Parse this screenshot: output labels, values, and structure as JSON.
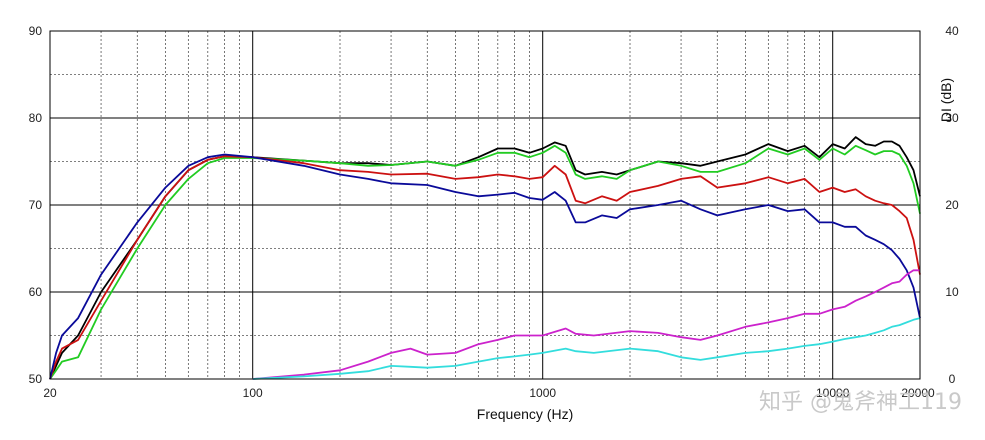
{
  "chart_data": {
    "type": "line",
    "xlabel": "Frequency (Hz)",
    "ylabel_right": "DI (dB)",
    "x_scale": "log",
    "xlim": [
      20,
      20000
    ],
    "ylim_left": [
      50,
      90
    ],
    "ylim_right": [
      0,
      40
    ],
    "grid": true,
    "x_tick_labels": [
      {
        "value": 20,
        "label": "20"
      },
      {
        "value": 100,
        "label": "100"
      },
      {
        "value": 1000,
        "label": "1000"
      },
      {
        "value": 10000,
        "label": "10000"
      },
      {
        "value": 20000,
        "label": "20000"
      }
    ],
    "y_left_ticks": [
      50,
      60,
      70,
      80,
      90
    ],
    "y_right_ticks": [
      0,
      10,
      20,
      30,
      40
    ],
    "series": [
      {
        "axis": "left",
        "color": "#000000",
        "points": [
          [
            20,
            50
          ],
          [
            21,
            51.5
          ],
          [
            22,
            53
          ],
          [
            25,
            55
          ],
          [
            30,
            60
          ],
          [
            40,
            66
          ],
          [
            50,
            71
          ],
          [
            60,
            74
          ],
          [
            70,
            75.2
          ],
          [
            80,
            75.6
          ],
          [
            100,
            75.5
          ],
          [
            150,
            75.1
          ],
          [
            200,
            74.8
          ],
          [
            250,
            74.8
          ],
          [
            300,
            74.6
          ],
          [
            400,
            75
          ],
          [
            500,
            74.5
          ],
          [
            600,
            75.5
          ],
          [
            700,
            76.5
          ],
          [
            800,
            76.5
          ],
          [
            900,
            76
          ],
          [
            1000,
            76.5
          ],
          [
            1100,
            77.2
          ],
          [
            1200,
            76.8
          ],
          [
            1300,
            74
          ],
          [
            1400,
            73.5
          ],
          [
            1600,
            73.8
          ],
          [
            1800,
            73.5
          ],
          [
            2000,
            74
          ],
          [
            2500,
            75
          ],
          [
            3000,
            74.8
          ],
          [
            3500,
            74.5
          ],
          [
            4000,
            75
          ],
          [
            5000,
            75.8
          ],
          [
            6000,
            77
          ],
          [
            7000,
            76.2
          ],
          [
            8000,
            76.8
          ],
          [
            9000,
            75.5
          ],
          [
            10000,
            77
          ],
          [
            11000,
            76.5
          ],
          [
            12000,
            77.8
          ],
          [
            13000,
            77
          ],
          [
            14000,
            76.8
          ],
          [
            15000,
            77.3
          ],
          [
            16000,
            77.3
          ],
          [
            17000,
            76.8
          ],
          [
            18000,
            75.5
          ],
          [
            19000,
            74
          ],
          [
            20000,
            71
          ]
        ]
      },
      {
        "axis": "left",
        "color": "#22cc22",
        "points": [
          [
            20,
            50
          ],
          [
            21,
            51
          ],
          [
            22,
            52
          ],
          [
            25,
            52.5
          ],
          [
            30,
            58
          ],
          [
            40,
            65
          ],
          [
            50,
            70
          ],
          [
            60,
            73
          ],
          [
            70,
            74.8
          ],
          [
            80,
            75.4
          ],
          [
            100,
            75.4
          ],
          [
            150,
            75.1
          ],
          [
            200,
            74.8
          ],
          [
            250,
            74.5
          ],
          [
            300,
            74.6
          ],
          [
            400,
            75
          ],
          [
            500,
            74.5
          ],
          [
            600,
            75.2
          ],
          [
            700,
            76
          ],
          [
            800,
            76
          ],
          [
            900,
            75.5
          ],
          [
            1000,
            76
          ],
          [
            1100,
            76.8
          ],
          [
            1200,
            76
          ],
          [
            1300,
            73.5
          ],
          [
            1400,
            73
          ],
          [
            1600,
            73.3
          ],
          [
            1800,
            73
          ],
          [
            2000,
            74
          ],
          [
            2500,
            75
          ],
          [
            3000,
            74.5
          ],
          [
            3500,
            73.8
          ],
          [
            4000,
            73.8
          ],
          [
            5000,
            74.8
          ],
          [
            6000,
            76.5
          ],
          [
            7000,
            75.8
          ],
          [
            8000,
            76.5
          ],
          [
            9000,
            75.2
          ],
          [
            10000,
            76.5
          ],
          [
            11000,
            75.8
          ],
          [
            12000,
            76.8
          ],
          [
            13000,
            76.3
          ],
          [
            14000,
            75.8
          ],
          [
            15000,
            76.2
          ],
          [
            16000,
            76.2
          ],
          [
            17000,
            75.8
          ],
          [
            18000,
            74.5
          ],
          [
            19000,
            72.5
          ],
          [
            20000,
            69
          ]
        ]
      },
      {
        "axis": "left",
        "color": "#cc1111",
        "points": [
          [
            20,
            50
          ],
          [
            21,
            52
          ],
          [
            22,
            53.5
          ],
          [
            25,
            54.5
          ],
          [
            30,
            59
          ],
          [
            40,
            66
          ],
          [
            50,
            71
          ],
          [
            60,
            74
          ],
          [
            70,
            75.2
          ],
          [
            80,
            75.6
          ],
          [
            100,
            75.5
          ],
          [
            150,
            74.8
          ],
          [
            200,
            74
          ],
          [
            250,
            73.8
          ],
          [
            300,
            73.5
          ],
          [
            400,
            73.6
          ],
          [
            500,
            73
          ],
          [
            600,
            73.2
          ],
          [
            700,
            73.5
          ],
          [
            800,
            73.3
          ],
          [
            900,
            73
          ],
          [
            1000,
            73.2
          ],
          [
            1100,
            74.5
          ],
          [
            1200,
            73.5
          ],
          [
            1300,
            70.5
          ],
          [
            1400,
            70.2
          ],
          [
            1600,
            71
          ],
          [
            1800,
            70.5
          ],
          [
            2000,
            71.5
          ],
          [
            2500,
            72.2
          ],
          [
            3000,
            73
          ],
          [
            3500,
            73.3
          ],
          [
            4000,
            72
          ],
          [
            5000,
            72.5
          ],
          [
            6000,
            73.2
          ],
          [
            7000,
            72.5
          ],
          [
            8000,
            73
          ],
          [
            9000,
            71.5
          ],
          [
            10000,
            72
          ],
          [
            11000,
            71.5
          ],
          [
            12000,
            71.8
          ],
          [
            13000,
            71
          ],
          [
            14000,
            70.5
          ],
          [
            15000,
            70.2
          ],
          [
            16000,
            70
          ],
          [
            17000,
            69.3
          ],
          [
            18000,
            68.5
          ],
          [
            19000,
            66
          ],
          [
            20000,
            62
          ]
        ]
      },
      {
        "axis": "left",
        "color": "#0a0a99",
        "points": [
          [
            20,
            50
          ],
          [
            21,
            53
          ],
          [
            22,
            55
          ],
          [
            25,
            57
          ],
          [
            30,
            62
          ],
          [
            40,
            68
          ],
          [
            50,
            72
          ],
          [
            60,
            74.5
          ],
          [
            70,
            75.5
          ],
          [
            80,
            75.8
          ],
          [
            100,
            75.5
          ],
          [
            150,
            74.5
          ],
          [
            200,
            73.5
          ],
          [
            250,
            73
          ],
          [
            300,
            72.5
          ],
          [
            400,
            72.3
          ],
          [
            500,
            71.5
          ],
          [
            600,
            71
          ],
          [
            700,
            71.2
          ],
          [
            800,
            71.4
          ],
          [
            900,
            70.8
          ],
          [
            1000,
            70.6
          ],
          [
            1100,
            71.5
          ],
          [
            1200,
            70.5
          ],
          [
            1300,
            68
          ],
          [
            1400,
            68
          ],
          [
            1600,
            68.8
          ],
          [
            1800,
            68.5
          ],
          [
            2000,
            69.5
          ],
          [
            2500,
            70
          ],
          [
            3000,
            70.5
          ],
          [
            3500,
            69.5
          ],
          [
            4000,
            68.8
          ],
          [
            5000,
            69.5
          ],
          [
            6000,
            70
          ],
          [
            7000,
            69.3
          ],
          [
            8000,
            69.5
          ],
          [
            9000,
            68
          ],
          [
            10000,
            68
          ],
          [
            11000,
            67.5
          ],
          [
            12000,
            67.5
          ],
          [
            13000,
            66.5
          ],
          [
            14000,
            66
          ],
          [
            15000,
            65.5
          ],
          [
            16000,
            64.8
          ],
          [
            17000,
            63.8
          ],
          [
            18000,
            62.5
          ],
          [
            19000,
            60.5
          ],
          [
            20000,
            57
          ]
        ]
      },
      {
        "axis": "right",
        "color": "#cc22cc",
        "points": [
          [
            100,
            0
          ],
          [
            150,
            0.5
          ],
          [
            200,
            1
          ],
          [
            250,
            2
          ],
          [
            300,
            3
          ],
          [
            350,
            3.5
          ],
          [
            400,
            2.8
          ],
          [
            500,
            3
          ],
          [
            600,
            4
          ],
          [
            700,
            4.5
          ],
          [
            800,
            5
          ],
          [
            900,
            5
          ],
          [
            1000,
            5
          ],
          [
            1200,
            5.8
          ],
          [
            1300,
            5.2
          ],
          [
            1500,
            5
          ],
          [
            2000,
            5.5
          ],
          [
            2500,
            5.3
          ],
          [
            3000,
            4.8
          ],
          [
            3500,
            4.5
          ],
          [
            4000,
            5
          ],
          [
            5000,
            6
          ],
          [
            6000,
            6.5
          ],
          [
            7000,
            7
          ],
          [
            8000,
            7.5
          ],
          [
            9000,
            7.5
          ],
          [
            10000,
            8
          ],
          [
            11000,
            8.3
          ],
          [
            12000,
            9
          ],
          [
            13000,
            9.5
          ],
          [
            14000,
            10
          ],
          [
            15000,
            10.5
          ],
          [
            16000,
            11
          ],
          [
            17000,
            11.2
          ],
          [
            18000,
            12
          ],
          [
            19000,
            12.5
          ],
          [
            20000,
            12.5
          ]
        ]
      },
      {
        "axis": "right",
        "color": "#33dddd",
        "points": [
          [
            100,
            0
          ],
          [
            150,
            0.3
          ],
          [
            200,
            0.6
          ],
          [
            250,
            0.9
          ],
          [
            300,
            1.5
          ],
          [
            350,
            1.4
          ],
          [
            400,
            1.3
          ],
          [
            500,
            1.5
          ],
          [
            600,
            2
          ],
          [
            700,
            2.4
          ],
          [
            800,
            2.6
          ],
          [
            900,
            2.8
          ],
          [
            1000,
            3
          ],
          [
            1200,
            3.5
          ],
          [
            1300,
            3.2
          ],
          [
            1500,
            3
          ],
          [
            2000,
            3.5
          ],
          [
            2500,
            3.2
          ],
          [
            3000,
            2.5
          ],
          [
            3500,
            2.2
          ],
          [
            4000,
            2.5
          ],
          [
            5000,
            3
          ],
          [
            6000,
            3.2
          ],
          [
            7000,
            3.5
          ],
          [
            8000,
            3.8
          ],
          [
            9000,
            4
          ],
          [
            10000,
            4.3
          ],
          [
            11000,
            4.6
          ],
          [
            12000,
            4.8
          ],
          [
            13000,
            5
          ],
          [
            14000,
            5.3
          ],
          [
            15000,
            5.6
          ],
          [
            16000,
            6
          ],
          [
            17000,
            6.2
          ],
          [
            18000,
            6.5
          ],
          [
            19000,
            6.8
          ],
          [
            20000,
            7
          ]
        ]
      }
    ]
  },
  "watermark": "知乎 @鬼斧神工119"
}
